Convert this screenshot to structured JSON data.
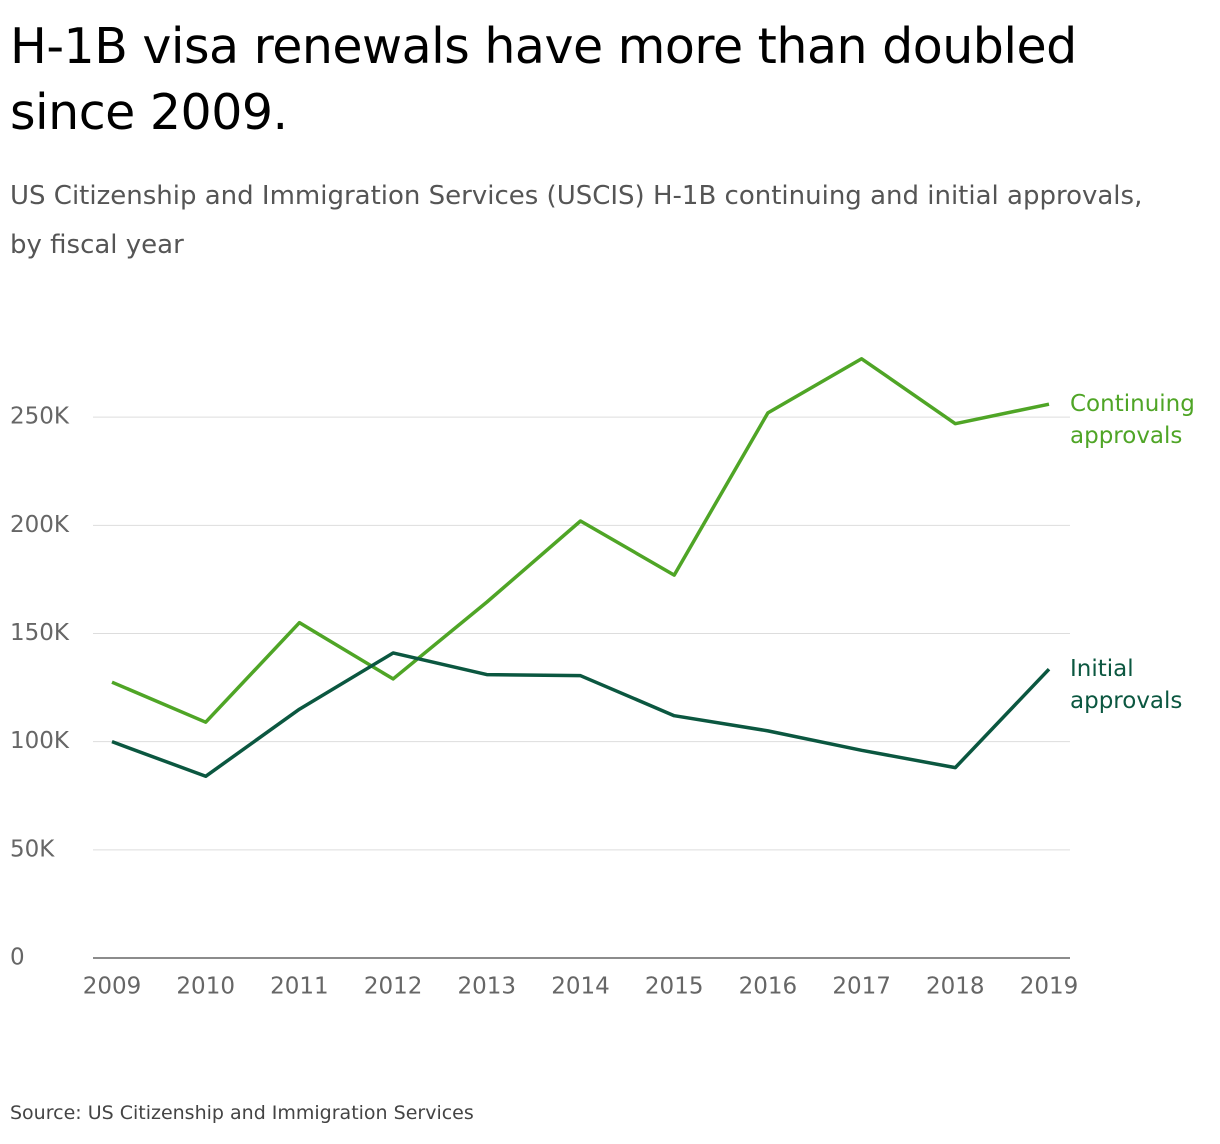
{
  "chart_data": {
    "type": "line",
    "title": "H-1B visa renewals have more than doubled since 2009.",
    "subtitle": "US Citizenship and Immigration Services (USCIS) H-1B continuing and initial approvals, by fiscal year",
    "source": "Source: US Citizenship and Immigration Services",
    "categories": [
      "2009",
      "2010",
      "2011",
      "2012",
      "2013",
      "2014",
      "2015",
      "2016",
      "2017",
      "2018",
      "2019"
    ],
    "series": [
      {
        "name": "Continuing approvals",
        "color": "#4fa526",
        "values": [
          127500,
          109000,
          155000,
          129000,
          164500,
          202000,
          177000,
          252000,
          277000,
          247000,
          256000
        ]
      },
      {
        "name": "Initial approvals",
        "color": "#0b5740",
        "values": [
          100000,
          84000,
          115000,
          141000,
          131000,
          130500,
          112000,
          105000,
          96000,
          88000,
          133500
        ]
      }
    ],
    "ylim": [
      0,
      300000
    ],
    "yticks": [
      0,
      {
        "value": 50000,
        "label": "50K"
      },
      {
        "value": 100000,
        "label": "100K"
      },
      {
        "value": 150000,
        "label": "150K"
      },
      {
        "value": 200000,
        "label": "200K"
      },
      {
        "value": 250000,
        "label": "250K"
      }
    ],
    "grid": true
  }
}
